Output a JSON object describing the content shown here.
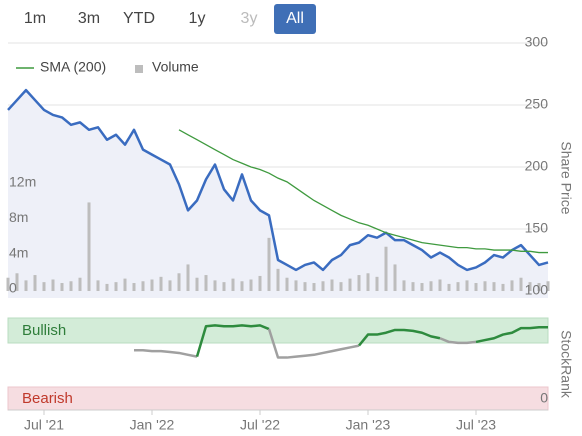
{
  "range_buttons": {
    "labels": [
      "1m",
      "3m",
      "YTD",
      "1y",
      "3y",
      "All"
    ],
    "active": 5,
    "disabled": [
      4
    ]
  },
  "chart_data": [
    {
      "type": "line",
      "categories": [
        null,
        null,
        null,
        null,
        "Jul '21",
        null,
        null,
        null,
        null,
        null,
        null,
        null,
        null,
        null,
        null,
        null,
        "Jan '22",
        null,
        null,
        null,
        null,
        null,
        null,
        null,
        null,
        null,
        null,
        null,
        "Jul '22",
        null,
        null,
        null,
        null,
        null,
        null,
        null,
        null,
        null,
        null,
        null,
        "Jan '23",
        null,
        null,
        null,
        null,
        null,
        null,
        null,
        null,
        null,
        null,
        null,
        "Jul '23",
        null,
        null,
        null,
        null,
        null,
        null,
        null,
        null
      ],
      "y_label": "Share Price",
      "ylim": [
        100,
        300
      ],
      "yticks": [
        100,
        150,
        200,
        250,
        300
      ],
      "y2lim": [
        0,
        28000000
      ],
      "y2ticks": [
        0,
        {
          "value": 4000000,
          "label": "4m"
        },
        {
          "value": 8000000,
          "label": "8m"
        },
        {
          "value": 12000000,
          "label": "12m"
        }
      ],
      "grid": true,
      "price": {
        "color": "#3a6cc0",
        "area_color": "#eef0f8",
        "values": [
          246,
          254,
          262,
          254,
          246,
          242,
          240,
          234,
          236,
          230,
          232,
          222,
          226,
          218,
          230,
          214,
          210,
          206,
          202,
          186,
          165,
          173,
          190,
          202,
          182,
          173,
          194,
          173,
          165,
          161,
          125,
          121,
          117,
          121,
          123,
          117,
          125,
          129,
          137,
          139,
          145,
          143,
          147,
          141,
          141,
          137,
          133,
          127,
          131,
          127,
          121,
          117,
          119,
          123,
          129,
          127,
          133,
          137,
          129,
          121,
          123
        ]
      },
      "series": [
        {
          "name": "SMA (200)",
          "type": "line",
          "color": "#3f9a3f",
          "values": [
            null,
            null,
            null,
            null,
            null,
            null,
            null,
            null,
            null,
            null,
            null,
            null,
            null,
            null,
            null,
            null,
            null,
            null,
            null,
            230,
            226,
            222,
            218,
            214,
            210,
            206,
            203,
            200,
            198,
            195,
            191,
            188,
            183,
            178,
            173,
            169,
            165,
            161,
            158,
            155,
            153,
            150,
            147,
            145,
            143,
            141,
            139,
            138,
            137,
            136,
            135,
            135,
            134,
            134,
            133,
            133,
            133,
            132,
            132,
            131,
            131
          ]
        },
        {
          "name": "Volume",
          "type": "bar",
          "axis": "y2",
          "color": "#bdbdbd",
          "values": [
            1500000,
            2000000,
            1200000,
            1800000,
            1000000,
            1300000,
            900000,
            1100000,
            1500000,
            10000000,
            1200000,
            800000,
            1000000,
            1400000,
            900000,
            1100000,
            1300000,
            1600000,
            1200000,
            2000000,
            3000000,
            1500000,
            1800000,
            1200000,
            1000000,
            1400000,
            1100000,
            1300000,
            1700000,
            6000000,
            2500000,
            1500000,
            1200000,
            1000000,
            900000,
            1100000,
            1300000,
            1000000,
            1400000,
            1800000,
            2000000,
            1600000,
            5000000,
            3000000,
            1200000,
            1000000,
            900000,
            1100000,
            1300000,
            800000,
            1000000,
            1200000,
            900000,
            1100000,
            1000000,
            800000,
            1200000,
            1500000,
            1000000,
            900000,
            1100000
          ]
        }
      ]
    },
    {
      "type": "rank",
      "y_label": "StockRank",
      "bullish": "Bullish",
      "bearish": "Bearish",
      "ylim": [
        0,
        100
      ],
      "yticks": [
        0
      ],
      "values": [
        null,
        null,
        null,
        null,
        null,
        null,
        null,
        null,
        null,
        null,
        null,
        null,
        null,
        null,
        65,
        65,
        64,
        64,
        63,
        62,
        60,
        58,
        91,
        92,
        91,
        91,
        92,
        91,
        92,
        88,
        57,
        57,
        58,
        59,
        60,
        62,
        64,
        66,
        68,
        70,
        82,
        82,
        84,
        87,
        87,
        86,
        84,
        80,
        78,
        74,
        73,
        73,
        74,
        76,
        78,
        82,
        84,
        89,
        89,
        90,
        90
      ],
      "colors": [
        null,
        null,
        null,
        null,
        null,
        null,
        null,
        null,
        null,
        null,
        null,
        null,
        null,
        null,
        "#a0a0a0",
        "#a0a0a0",
        "#a0a0a0",
        "#a0a0a0",
        "#a0a0a0",
        "#a0a0a0",
        "#a0a0a0",
        "#a0a0a0",
        "#2e8b3e",
        "#2e8b3e",
        "#2e8b3e",
        "#2e8b3e",
        "#2e8b3e",
        "#2e8b3e",
        "#2e8b3e",
        "#2e8b3e",
        "#a0a0a0",
        "#a0a0a0",
        "#a0a0a0",
        "#a0a0a0",
        "#a0a0a0",
        "#a0a0a0",
        "#a0a0a0",
        "#a0a0a0",
        "#a0a0a0",
        "#a0a0a0",
        "#2e8b3e",
        "#2e8b3e",
        "#2e8b3e",
        "#2e8b3e",
        "#2e8b3e",
        "#2e8b3e",
        "#2e8b3e",
        "#2e8b3e",
        "#2e8b3e",
        "#a0a0a0",
        "#a0a0a0",
        "#a0a0a0",
        "#a0a0a0",
        "#2e8b3e",
        "#2e8b3e",
        "#2e8b3e",
        "#2e8b3e",
        "#2e8b3e",
        "#2e8b3e",
        "#2e8b3e",
        "#2e8b3e"
      ]
    }
  ]
}
